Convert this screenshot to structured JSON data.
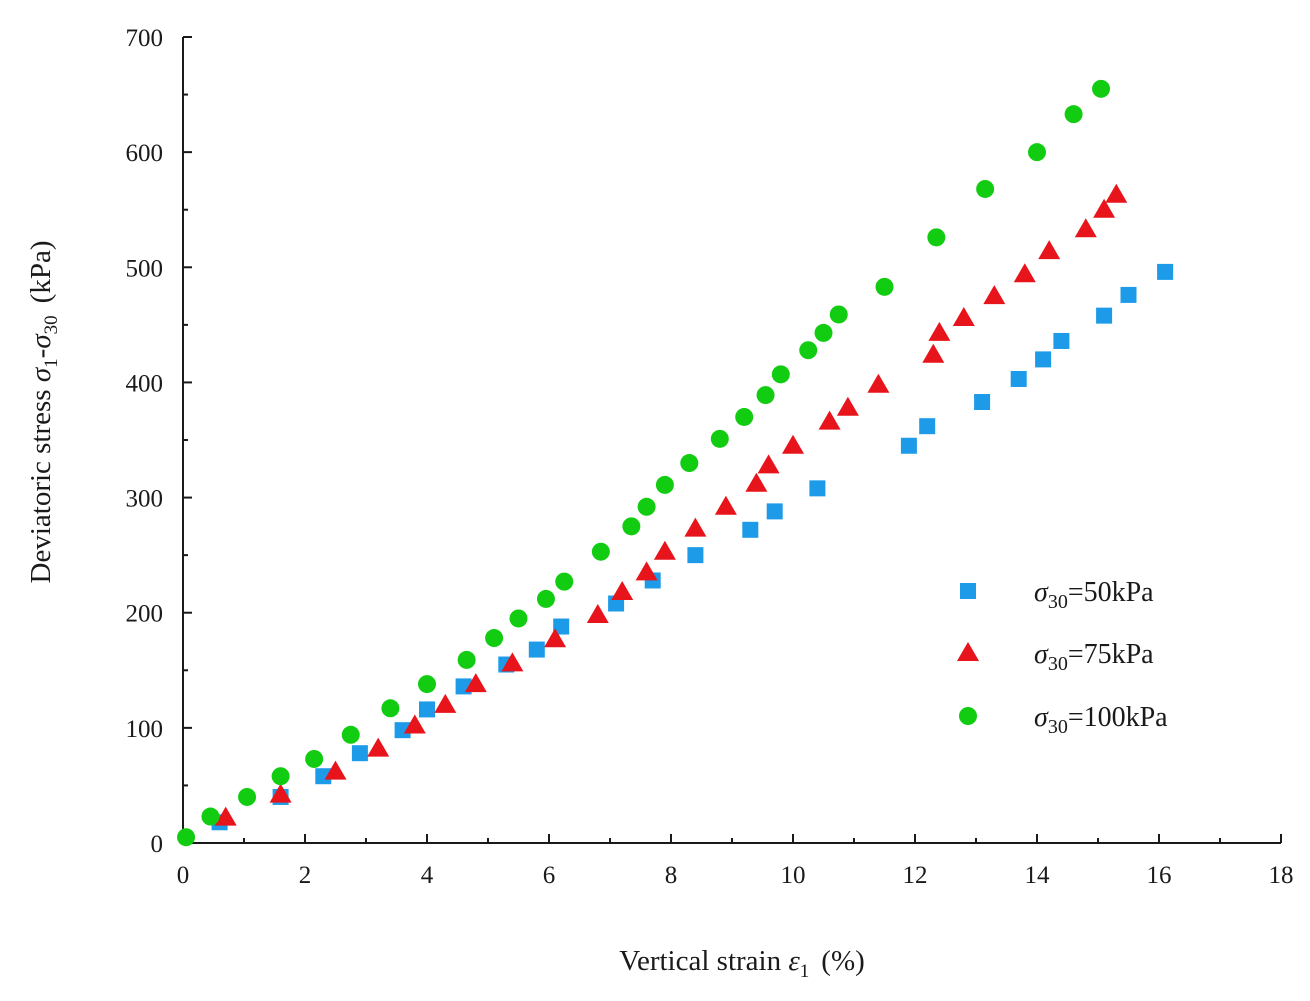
{
  "chart_data": {
    "type": "scatter",
    "title": "",
    "xlabel": "Vertical strain ε1 (%)",
    "ylabel": "Deviatoric stress σ1-σ30 (kPa)",
    "xlim": [
      0,
      18
    ],
    "ylim": [
      0,
      700
    ],
    "x_ticks": [
      0,
      2,
      4,
      6,
      8,
      10,
      12,
      14,
      16,
      18
    ],
    "y_ticks": [
      0,
      100,
      200,
      300,
      400,
      500,
      600,
      700
    ],
    "grid": false,
    "legend_position": "right-middle",
    "series": [
      {
        "name": "σ30=50kPa",
        "sigma_symbol": "σ",
        "subscript": "30",
        "value_text": "=50kPa",
        "marker": "square",
        "color": "#1e9be8",
        "x": [
          0.6,
          1.6,
          2.3,
          2.9,
          3.6,
          4.0,
          4.6,
          5.3,
          5.8,
          6.2,
          7.1,
          7.7,
          8.4,
          9.3,
          9.7,
          10.4,
          11.9,
          12.2,
          13.1,
          13.7,
          14.1,
          14.4,
          15.1,
          15.5,
          16.1
        ],
        "y": [
          18,
          40,
          58,
          78,
          98,
          116,
          136,
          155,
          168,
          188,
          208,
          228,
          250,
          272,
          288,
          308,
          345,
          362,
          383,
          403,
          420,
          436,
          458,
          476,
          496
        ]
      },
      {
        "name": "σ30=75kPa",
        "sigma_symbol": "σ",
        "subscript": "30",
        "value_text": "=75kPa",
        "marker": "triangle",
        "color": "#e8141b",
        "x": [
          0.7,
          1.6,
          2.5,
          3.2,
          3.8,
          4.3,
          4.8,
          5.4,
          6.1,
          6.8,
          7.2,
          7.6,
          7.9,
          8.4,
          8.9,
          9.4,
          9.6,
          10.0,
          10.6,
          10.9,
          11.4,
          12.3,
          12.4,
          12.8,
          13.3,
          13.8,
          14.2,
          14.8,
          15.1,
          15.3
        ],
        "y": [
          22,
          42,
          62,
          82,
          102,
          120,
          138,
          156,
          177,
          198,
          218,
          235,
          253,
          273,
          292,
          312,
          328,
          345,
          366,
          378,
          398,
          424,
          443,
          456,
          475,
          494,
          514,
          533,
          550,
          563
        ]
      },
      {
        "name": "σ30=100kPa",
        "sigma_symbol": "σ",
        "subscript": "30",
        "value_text": "=100kPa",
        "marker": "circle",
        "color": "#12cc12",
        "x": [
          0.05,
          0.45,
          1.05,
          1.6,
          2.15,
          2.75,
          3.4,
          4.0,
          4.65,
          5.1,
          5.5,
          5.95,
          6.25,
          6.85,
          7.35,
          7.6,
          7.9,
          8.3,
          8.8,
          9.2,
          9.55,
          9.8,
          10.25,
          10.5,
          10.75,
          11.5,
          12.35,
          13.15,
          14.0,
          14.6,
          15.05
        ],
        "y": [
          5,
          23,
          40,
          58,
          73,
          94,
          117,
          138,
          159,
          178,
          195,
          212,
          227,
          253,
          275,
          292,
          311,
          330,
          351,
          370,
          389,
          407,
          428,
          443,
          459,
          483,
          526,
          568,
          600,
          633,
          655
        ]
      }
    ]
  }
}
